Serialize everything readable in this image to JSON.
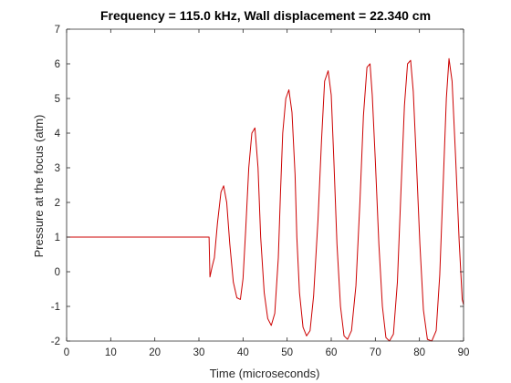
{
  "chart_data": {
    "type": "line",
    "title": "Frequency = 115.0 kHz, Wall displacement = 22.340 cm",
    "xlabel": "Time (microseconds)",
    "ylabel": "Pressure at the focus (atm)",
    "xlim": [
      0,
      90
    ],
    "ylim": [
      -2,
      7
    ],
    "xticks": [
      0,
      10,
      20,
      30,
      40,
      50,
      60,
      70,
      80,
      90
    ],
    "yticks": [
      -2,
      -1,
      0,
      1,
      2,
      3,
      4,
      5,
      6,
      7
    ],
    "grid": false,
    "line_color": "#cc0000",
    "series": [
      {
        "x": [
          0,
          32.3,
          32.5,
          33.0,
          33.5,
          34.2,
          35.0,
          35.6,
          36.3,
          37.0,
          37.8,
          38.6,
          39.4,
          40.0,
          40.6,
          41.3,
          42.0,
          42.7,
          43.4,
          44.0,
          44.8,
          45.6,
          46.4,
          47.2,
          48.0,
          48.5,
          49.0,
          49.7,
          50.4,
          51.1,
          51.8,
          52.2,
          52.8,
          53.6,
          54.4,
          55.2,
          56.0,
          57.0,
          57.8,
          58.5,
          59.3,
          60.0,
          60.6,
          61.3,
          62.1,
          62.9,
          63.7,
          64.6,
          65.6,
          66.5,
          67.3,
          68.1,
          68.8,
          69.3,
          70.0,
          70.8,
          71.6,
          72.4,
          73.2,
          74.1,
          75.0,
          75.8,
          76.6,
          77.3,
          78.0,
          78.6,
          79.3,
          80.1,
          80.9,
          81.8,
          82.8,
          83.8,
          84.6,
          85.4,
          86.1,
          86.7,
          87.4,
          88.2,
          89.0,
          89.7,
          90.0
        ],
        "y": [
          1.0,
          1.0,
          -0.15,
          0.15,
          0.4,
          1.4,
          2.3,
          2.48,
          2.0,
          0.8,
          -0.3,
          -0.75,
          -0.8,
          -0.2,
          1.2,
          3.0,
          4.0,
          4.15,
          3.0,
          1.0,
          -0.6,
          -1.35,
          -1.55,
          -1.2,
          0.4,
          2.3,
          4.0,
          5.0,
          5.25,
          4.6,
          2.8,
          1.0,
          -0.6,
          -1.6,
          -1.85,
          -1.7,
          -0.7,
          1.5,
          3.8,
          5.5,
          5.8,
          5.1,
          3.2,
          0.8,
          -1.0,
          -1.85,
          -1.95,
          -1.7,
          -0.4,
          2.0,
          4.5,
          5.9,
          6.0,
          5.1,
          3.2,
          0.8,
          -1.0,
          -1.9,
          -2.0,
          -1.8,
          -0.3,
          2.3,
          4.8,
          6.0,
          6.1,
          5.2,
          3.2,
          0.8,
          -1.1,
          -1.95,
          -2.0,
          -1.7,
          -0.1,
          2.6,
          5.0,
          6.15,
          5.5,
          3.3,
          0.9,
          -0.8,
          -0.95
        ]
      }
    ]
  }
}
